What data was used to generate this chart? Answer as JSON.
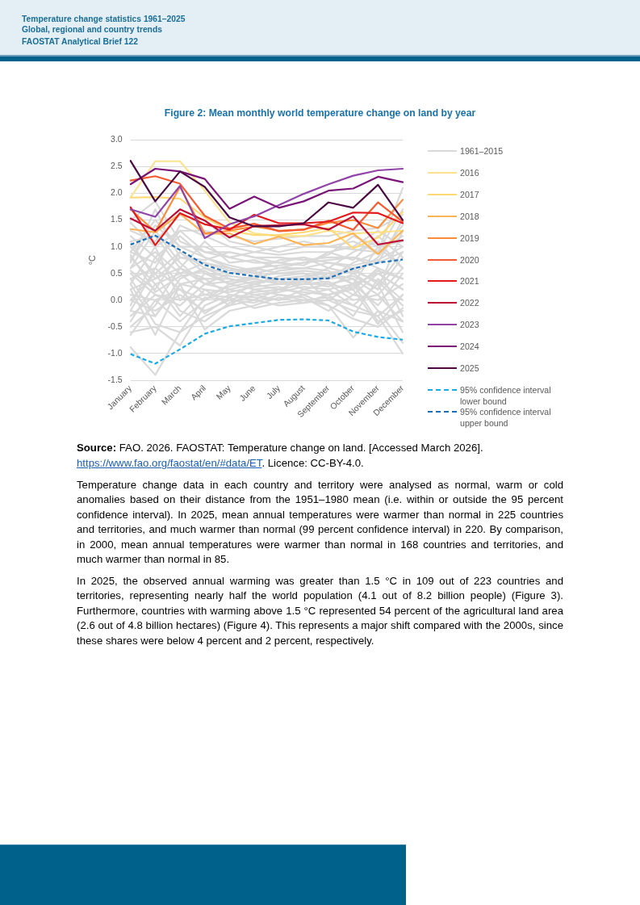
{
  "chart_data": {
    "type": "line",
    "title": "Figure 2: Mean monthly world temperature change on land by year",
    "ylabel": "°C",
    "categories": [
      "January",
      "February",
      "March",
      "April",
      "May",
      "June",
      "July",
      "August",
      "September",
      "October",
      "November",
      "December"
    ],
    "ylim": [
      -1.5,
      3
    ],
    "yticks": [
      {
        "value": -1.5,
        "label": "-1.5"
      },
      {
        "value": -1,
        "label": "-1.0"
      },
      {
        "value": -0.5,
        "label": "-0.5"
      },
      {
        "value": 0,
        "label": "0.0"
      },
      {
        "value": 0.5,
        "label": "0.5"
      },
      {
        "value": 1,
        "label": "1.0"
      },
      {
        "value": 1.5,
        "label": "1.5"
      },
      {
        "value": 2,
        "label": "2.0"
      },
      {
        "value": 2.5,
        "label": "2.5"
      },
      {
        "value": 3,
        "label": "3.0"
      }
    ],
    "grid": "y",
    "legend": "right",
    "marker": "none",
    "line_style": "solid",
    "series": [
      {
        "name": "1961–2015",
        "color": "#d9d9d9",
        "values": [
          -0.88,
          -1.4,
          -0.6,
          -0.3,
          -0.1,
          0.0,
          -0.1,
          -0.05,
          0.0,
          -0.2,
          -0.3,
          -1.0
        ]
      },
      {
        "color": "#d9d9d9",
        "values": [
          -0.6,
          -0.5,
          -0.85,
          -0.1,
          0.1,
          0.05,
          0.0,
          0.1,
          -0.1,
          -0.7,
          -0.2,
          -0.4
        ]
      },
      {
        "color": "#d9d9d9",
        "values": [
          0.2,
          -0.65,
          0.3,
          -0.55,
          -0.2,
          -0.1,
          0.05,
          -0.05,
          0.1,
          0.2,
          -0.45,
          0.1
        ]
      },
      {
        "color": "#d9d9d9",
        "values": [
          -0.4,
          0.3,
          -0.3,
          0.2,
          -0.1,
          0.2,
          0.1,
          0.0,
          0.05,
          -0.1,
          0.3,
          -0.6
        ]
      },
      {
        "color": "#d9d9d9",
        "values": [
          0.0,
          -0.2,
          0.1,
          -0.2,
          0.0,
          -0.05,
          0.1,
          0.05,
          -0.2,
          0.1,
          0.0,
          0.3
        ]
      },
      {
        "color": "#d9d9d9",
        "values": [
          0.5,
          0.1,
          -0.1,
          0.3,
          0.2,
          0.1,
          0.0,
          0.2,
          0.1,
          -0.3,
          0.4,
          0.0
        ]
      },
      {
        "color": "#d9d9d9",
        "values": [
          -0.2,
          0.6,
          0.2,
          0.0,
          0.3,
          0.2,
          0.25,
          0.1,
          0.2,
          0.3,
          -0.1,
          0.5
        ]
      },
      {
        "color": "#d9d9d9",
        "values": [
          0.8,
          0.3,
          0.5,
          0.1,
          0.05,
          0.3,
          0.2,
          0.3,
          0.3,
          0.2,
          0.6,
          -0.3
        ]
      },
      {
        "color": "#d9d9d9",
        "values": [
          0.3,
          1.0,
          0.0,
          0.5,
          0.3,
          0.4,
          0.3,
          0.35,
          0.25,
          0.5,
          0.2,
          0.8
        ]
      },
      {
        "color": "#d9d9d9",
        "values": [
          1.0,
          0.5,
          0.9,
          0.6,
          0.4,
          0.3,
          0.4,
          0.45,
          0.5,
          0.3,
          0.5,
          0.2
        ]
      },
      {
        "color": "#d9d9d9",
        "values": [
          0.6,
          1.3,
          0.7,
          0.3,
          0.5,
          0.6,
          0.5,
          0.5,
          0.4,
          0.7,
          0.9,
          1.2
        ]
      },
      {
        "color": "#d9d9d9",
        "values": [
          1.2,
          0.8,
          1.2,
          0.8,
          0.6,
          0.5,
          0.6,
          0.6,
          0.7,
          0.6,
          0.3,
          0.9
        ]
      },
      {
        "color": "#d9d9d9",
        "values": [
          0.9,
          1.5,
          1.0,
          1.0,
          0.8,
          0.7,
          0.7,
          0.8,
          0.6,
          0.9,
          1.1,
          0.6
        ]
      },
      {
        "color": "#d9d9d9",
        "values": [
          1.5,
          1.85,
          1.1,
          0.9,
          0.9,
          0.8,
          0.8,
          0.75,
          0.8,
          0.8,
          0.7,
          1.5
        ]
      },
      {
        "color": "#d9d9d9",
        "values": [
          0.4,
          0.6,
          1.4,
          1.2,
          1.0,
          0.9,
          0.85,
          0.9,
          0.9,
          1.0,
          1.3,
          1.0
        ]
      },
      {
        "color": "#d9d9d9",
        "values": [
          1.3,
          1.1,
          1.6,
          1.5,
          1.1,
          1.0,
          0.9,
          1.0,
          1.0,
          1.1,
          0.9,
          2.1
        ]
      },
      {
        "color": "#d9d9d9",
        "values": [
          -0.2,
          -0.3,
          0.4,
          0.6,
          0.5,
          0.55,
          0.3,
          0.3,
          0.5,
          0.4,
          -0.2,
          -0.8
        ]
      },
      {
        "color": "#d9d9d9",
        "values": [
          0.1,
          0.0,
          -0.4,
          0.0,
          0.2,
          0.3,
          0.4,
          0.2,
          0.3,
          0.0,
          0.1,
          0.6
        ]
      },
      {
        "color": "#d9d9d9",
        "values": [
          -0.5,
          -0.1,
          0.6,
          0.4,
          0.1,
          0.0,
          0.2,
          0.4,
          0.0,
          0.3,
          -0.4,
          -0.2
        ]
      },
      {
        "color": "#d9d9d9",
        "values": [
          0.7,
          1.7,
          0.8,
          0.7,
          0.6,
          0.5,
          0.3,
          0.4,
          0.6,
          0.5,
          0.8,
          1.4
        ]
      },
      {
        "color": "#d9d9d9",
        "values": [
          0.9,
          0.7,
          1.3,
          0.9,
          0.8,
          0.9,
          1.0,
          1.1,
          1.0,
          0.95,
          0.9,
          1.7
        ]
      },
      {
        "color": "#d9d9d9",
        "values": [
          0.6,
          0.9,
          0.5,
          0.7,
          0.55,
          0.6,
          0.65,
          0.7,
          0.75,
          0.8,
          0.6,
          0.4
        ]
      },
      {
        "color": "#d9d9d9",
        "values": [
          0.2,
          0.4,
          0.6,
          0.3,
          0.35,
          0.45,
          0.5,
          0.55,
          0.5,
          0.6,
          0.7,
          0.9
        ]
      },
      {
        "color": "#d9d9d9",
        "values": [
          -0.3,
          0.1,
          0.0,
          0.1,
          0.25,
          0.35,
          0.35,
          0.3,
          0.35,
          0.1,
          0.5,
          0.2
        ]
      },
      {
        "color": "#d9d9d9",
        "values": [
          0.4,
          -0.3,
          0.3,
          0.4,
          0.4,
          0.3,
          0.45,
          0.5,
          0.3,
          0.4,
          0.1,
          -0.4
        ]
      },
      {
        "color": "#d9d9d9",
        "values": [
          1.1,
          1.2,
          0.6,
          1.1,
          0.7,
          0.75,
          0.6,
          0.7,
          0.85,
          1.2,
          1.0,
          1.1
        ]
      },
      {
        "color": "#d9d9d9",
        "values": [
          0.0,
          0.5,
          -0.2,
          -0.4,
          -0.05,
          0.1,
          0.15,
          0.25,
          0.2,
          -0.1,
          -0.3,
          0.1
        ]
      },
      {
        "color": "#d9d9d9",
        "values": [
          0.55,
          0.2,
          0.9,
          0.5,
          0.45,
          0.4,
          0.55,
          0.6,
          0.55,
          0.3,
          1.0,
          0.6
        ]
      },
      {
        "color": "#d9d9d9",
        "values": [
          -0.1,
          0.8,
          0.3,
          0.2,
          0.15,
          0.25,
          0.3,
          0.35,
          0.45,
          0.55,
          0.35,
          -0.1
        ]
      },
      {
        "color": "#d9d9d9",
        "values": [
          0.3,
          -0.45,
          -0.6,
          0.05,
          0.0,
          0.15,
          0.2,
          0.15,
          0.1,
          0.25,
          0.55,
          0.4
        ]
      },
      {
        "color": "#d9d9d9",
        "values": [
          0.75,
          1.4,
          1.0,
          0.8,
          0.65,
          0.55,
          0.75,
          0.8,
          0.7,
          0.65,
          0.75,
          1.0
        ]
      },
      {
        "color": "#d9d9d9",
        "values": [
          1.1,
          0.4,
          0.8,
          0.75,
          0.9,
          0.8,
          0.7,
          0.65,
          0.9,
          0.75,
          1.2,
          0.8
        ]
      },
      {
        "color": "#d9d9d9",
        "values": [
          -0.65,
          0.0,
          0.2,
          -0.25,
          0.05,
          -0.15,
          -0.05,
          0.0,
          -0.1,
          -0.35,
          -0.5,
          -0.15
        ]
      },
      {
        "color": "#d9d9d9",
        "values": [
          0.85,
          0.15,
          0.45,
          0.55,
          0.3,
          0.45,
          0.4,
          0.4,
          0.4,
          0.45,
          0.2,
          1.3
        ]
      },
      {
        "color": "#d9d9d9",
        "values": [
          1.45,
          1.0,
          1.3,
          1.3,
          1.2,
          1.1,
          1.15,
          1.2,
          1.2,
          1.3,
          1.35,
          1.6
        ]
      },
      {
        "name": "2016",
        "color": "#fde28e",
        "values": [
          1.92,
          2.6,
          2.6,
          2.05,
          1.45,
          1.25,
          1.2,
          1.2,
          1.3,
          1.25,
          1.27,
          1.3
        ]
      },
      {
        "name": "2017",
        "color": "#fed976",
        "values": [
          1.92,
          1.93,
          1.9,
          1.55,
          1.3,
          1.22,
          1.22,
          1.27,
          1.35,
          0.97,
          1.17,
          1.65
        ]
      },
      {
        "name": "2018",
        "color": "#fdb456",
        "values": [
          1.33,
          1.27,
          1.62,
          1.24,
          1.25,
          1.05,
          1.19,
          1.03,
          1.07,
          1.25,
          0.86,
          1.3
        ]
      },
      {
        "name": "2019",
        "color": "#fb8c3c",
        "values": [
          1.7,
          1.28,
          2.12,
          1.25,
          1.3,
          1.38,
          1.3,
          1.32,
          1.45,
          1.5,
          1.35,
          1.88
        ]
      },
      {
        "name": "2020",
        "color": "#f55a30",
        "values": [
          2.24,
          2.32,
          2.18,
          1.58,
          1.34,
          1.43,
          1.29,
          1.32,
          1.49,
          1.32,
          1.83,
          1.47
        ]
      },
      {
        "name": "2021",
        "color": "#e3191c",
        "values": [
          1.74,
          1.03,
          1.63,
          1.42,
          1.32,
          1.6,
          1.44,
          1.44,
          1.47,
          1.64,
          1.63,
          1.44
        ]
      },
      {
        "name": "2022",
        "color": "#bd0d35",
        "values": [
          1.53,
          1.3,
          1.7,
          1.49,
          1.17,
          1.39,
          1.4,
          1.42,
          1.32,
          1.57,
          1.04,
          1.12
        ]
      },
      {
        "name": "2023",
        "color": "#9143a8",
        "values": [
          1.7,
          1.56,
          2.14,
          1.16,
          1.42,
          1.57,
          1.78,
          1.99,
          2.17,
          2.33,
          2.43,
          2.46
        ]
      },
      {
        "name": "2024",
        "color": "#7a1577",
        "values": [
          2.17,
          2.46,
          2.41,
          2.27,
          1.71,
          1.94,
          1.73,
          1.85,
          2.05,
          2.09,
          2.31,
          2.21
        ]
      },
      {
        "name": "2025",
        "color": "#4b0a43",
        "values": [
          2.61,
          1.85,
          2.41,
          2.12,
          1.55,
          1.38,
          1.38,
          1.44,
          1.83,
          1.73,
          2.16,
          1.5
        ]
      },
      {
        "name": "95% confidence interval lower bound",
        "color": "#1aabe6",
        "line_style": "dashed",
        "values": [
          -1.01,
          -1.19,
          -0.92,
          -0.63,
          -0.49,
          -0.43,
          -0.37,
          -0.36,
          -0.38,
          -0.59,
          -0.69,
          -0.74
        ]
      },
      {
        "name": "95% confidence interval upper bound",
        "color": "#1b6fb8",
        "line_style": "dashed",
        "values": [
          1.04,
          1.21,
          0.94,
          0.66,
          0.51,
          0.45,
          0.39,
          0.39,
          0.41,
          0.59,
          0.7,
          0.76
        ]
      }
    ],
    "annotations": [
      "Temperature change statistics 1961–2025",
      "Global, regional and country trends",
      "FAOSTAT Analytical Brief 122",
      "Source:",
      "FAO. 2026. FAOSTAT: Temperature change on land. [Accessed March 2026].",
      "https://www.fao.org/faostat/en/#data/ET",
      ". Licence: CC-BY-4.0.",
      "Temperature change data in each country and territory were analysed as normal, warm or cold anomalies based on their distance from the 1951–1980 mean (i.e. within or outside the 95 percent confidence interval). In 2025, mean annual temperatures were warmer than normal in 225 countries and territories, and much warmer than normal (99 percent confidence interval) in 220. By comparison, in 2000, mean annual temperatures were warmer than normal in 168 countries and territories, and much warmer than normal in 85.",
      "In 2025, the observed annual warming was greater than 1.5 °C in 109 out of 223 countries and territories, representing nearly half the world population (4.1 out of 8.2 billion people) (Figure 3). Furthermore, countries with warming above 1.5 °C represented 54 percent of the agricultural land area (2.6 out of 4.8 billion hectares) (Figure 4). This represents a major shift compared with the 2000s, since these shares were below 4 percent and 2 percent, respectively."
    ]
  }
}
